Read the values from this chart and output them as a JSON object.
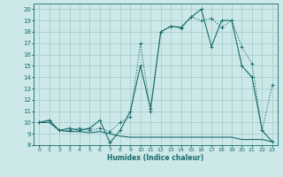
{
  "xlabel": "Humidex (Indice chaleur)",
  "xlim": [
    -0.5,
    23.5
  ],
  "ylim": [
    8,
    20.5
  ],
  "xticks": [
    0,
    1,
    2,
    3,
    4,
    5,
    6,
    7,
    8,
    9,
    10,
    11,
    12,
    13,
    14,
    15,
    16,
    17,
    18,
    19,
    20,
    21,
    22,
    23
  ],
  "yticks": [
    8,
    9,
    10,
    11,
    12,
    13,
    14,
    15,
    16,
    17,
    18,
    19,
    20
  ],
  "bg_color": "#cce8e8",
  "line_color": "#1a6b6b",
  "grid_color": "#aacece",
  "line1_x": [
    0,
    1,
    2,
    3,
    4,
    5,
    6,
    7,
    8,
    9,
    10,
    11,
    12,
    13,
    14,
    15,
    16,
    17,
    18,
    19,
    20,
    21,
    22,
    23
  ],
  "line1_y": [
    10.0,
    10.2,
    9.3,
    9.3,
    9.5,
    9.3,
    9.5,
    9.2,
    10.0,
    10.5,
    17.0,
    11.0,
    18.0,
    18.5,
    18.3,
    19.3,
    19.0,
    19.2,
    18.4,
    19.0,
    16.7,
    15.2,
    9.3,
    13.3
  ],
  "line1_marker": "+",
  "line1_style": "dotted",
  "line2_x": [
    0,
    1,
    2,
    3,
    4,
    5,
    6,
    7,
    8,
    9,
    10,
    11,
    12,
    13,
    14,
    15,
    16,
    17,
    18,
    19,
    20,
    21,
    22,
    23
  ],
  "line2_y": [
    10.0,
    10.2,
    9.3,
    9.5,
    9.3,
    9.5,
    10.2,
    8.2,
    9.3,
    11.0,
    15.0,
    11.2,
    18.0,
    18.5,
    18.4,
    19.3,
    20.0,
    16.7,
    19.0,
    19.0,
    15.0,
    14.0,
    9.3,
    8.3
  ],
  "line2_marker": "+",
  "line2_style": "-",
  "line3_x": [
    0,
    1,
    2,
    3,
    4,
    5,
    6,
    7,
    8,
    9,
    10,
    11,
    12,
    13,
    14,
    15,
    16,
    17,
    18,
    19,
    20,
    21,
    22,
    23
  ],
  "line3_y": [
    10.0,
    10.0,
    9.3,
    9.2,
    9.2,
    9.1,
    9.2,
    9.0,
    8.8,
    8.7,
    8.7,
    8.7,
    8.7,
    8.7,
    8.7,
    8.7,
    8.7,
    8.7,
    8.7,
    8.7,
    8.5,
    8.5,
    8.5,
    8.3
  ],
  "line3_marker": "",
  "line3_style": "-"
}
